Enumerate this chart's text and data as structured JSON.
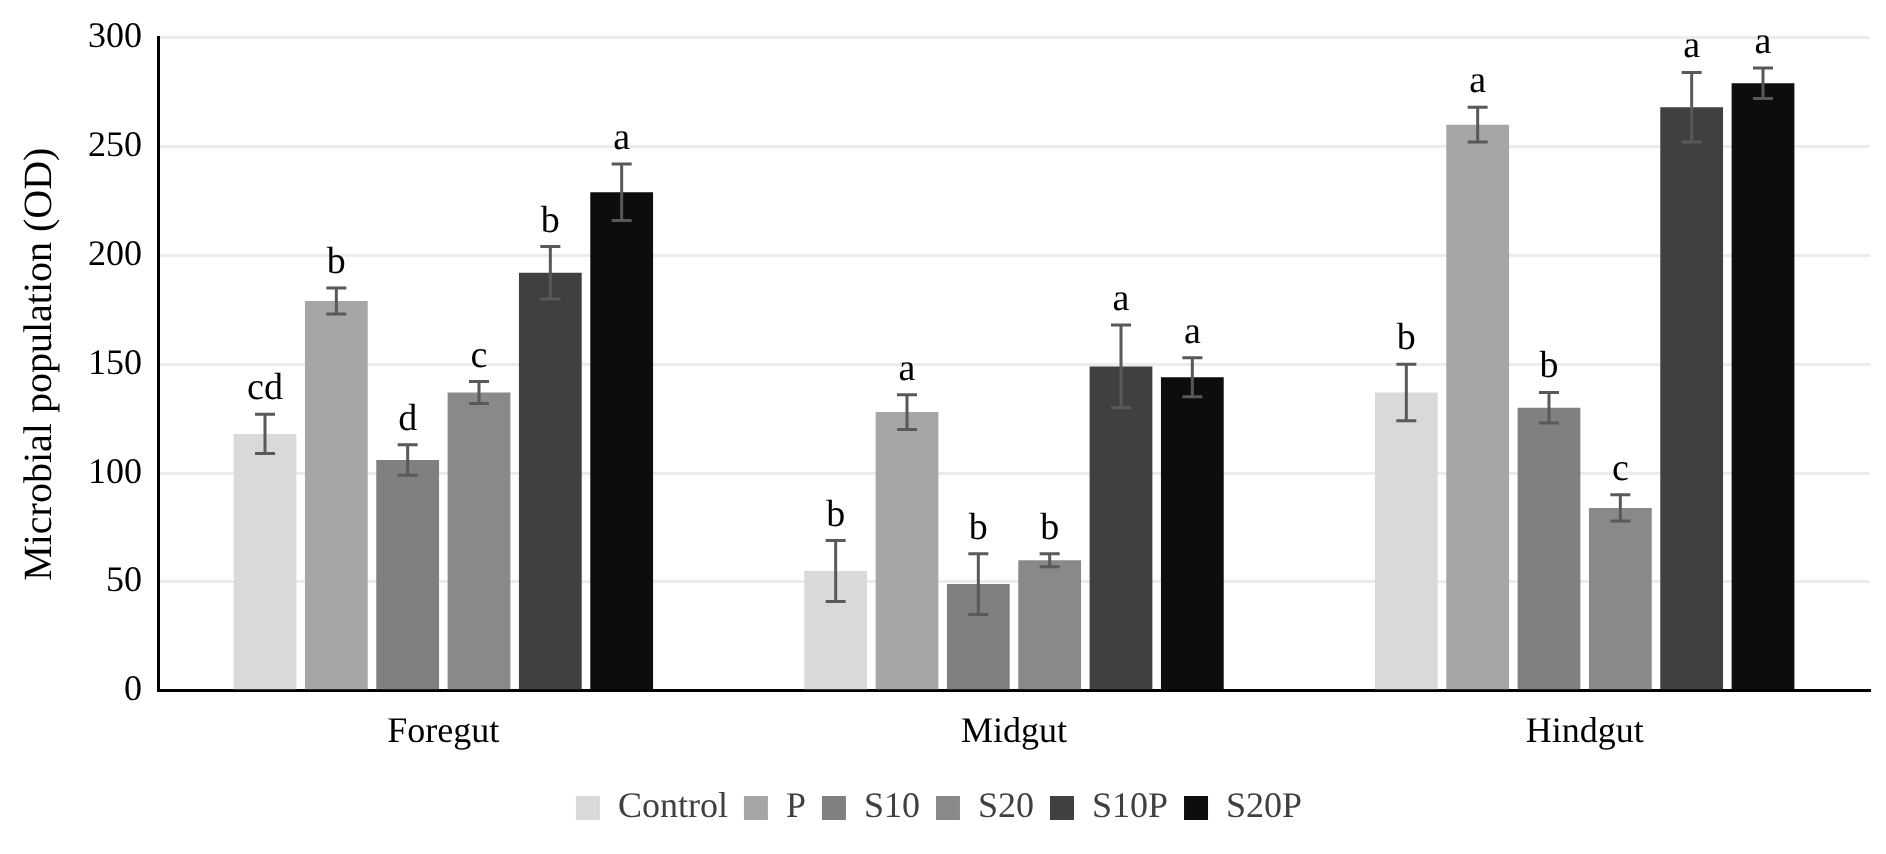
{
  "chart_data": {
    "type": "bar",
    "ylabel": "Microbial population (OD)",
    "categories": [
      "Foregut",
      "Midgut",
      "Hindgut"
    ],
    "series": [
      {
        "name": "Control",
        "color": "#d9d9d9",
        "values": [
          118,
          55,
          137
        ],
        "errors": [
          9,
          14,
          13
        ],
        "value_labels": [
          "cd",
          "b",
          "b"
        ]
      },
      {
        "name": "P",
        "color": "#a6a6a6",
        "values": [
          179,
          128,
          260
        ],
        "errors": [
          6,
          8,
          8
        ],
        "value_labels": [
          "b",
          "a",
          "a"
        ]
      },
      {
        "name": "S10",
        "color": "#808080",
        "values": [
          106,
          49,
          130
        ],
        "errors": [
          7,
          14,
          7
        ],
        "value_labels": [
          "d",
          "b",
          "b"
        ]
      },
      {
        "name": "S20",
        "color": "#898989",
        "values": [
          137,
          60,
          84
        ],
        "errors": [
          5,
          3,
          6
        ],
        "value_labels": [
          "c",
          "b",
          "c"
        ]
      },
      {
        "name": "S10P",
        "color": "#404040",
        "values": [
          192,
          149,
          268
        ],
        "errors": [
          12,
          19,
          16
        ],
        "value_labels": [
          "b",
          "a",
          "a"
        ]
      },
      {
        "name": "S20P",
        "color": "#0d0d0d",
        "values": [
          229,
          144,
          279
        ],
        "errors": [
          13,
          9,
          7
        ],
        "value_labels": [
          "a",
          "a",
          "a"
        ]
      }
    ],
    "ylim": [
      0,
      300
    ],
    "yticks": [
      0,
      50,
      100,
      150,
      200,
      250,
      300
    ],
    "grid": "y",
    "legend": "bottom"
  }
}
